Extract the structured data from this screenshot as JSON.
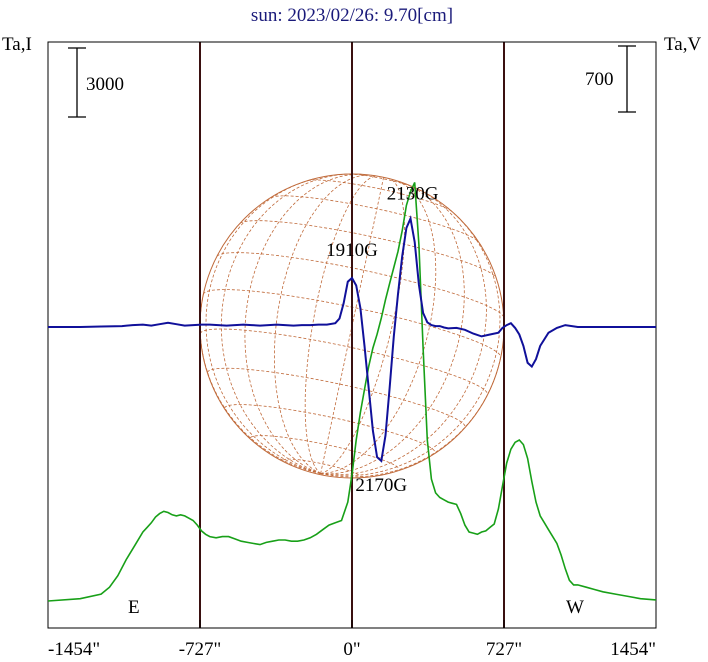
{
  "chart_data": {
    "type": "line",
    "title": "sun: 2023/02/26: 9.70[cm]",
    "left_axis_label": "Ta,I",
    "right_axis_label": "Ta,V",
    "xlim": [
      -1454,
      1454
    ],
    "x_tick_values": [
      -1454,
      -727,
      0,
      727,
      1454
    ],
    "x_tick_labels": [
      "-1454\"",
      "-727\"",
      "0\"",
      "727\"",
      "1454\""
    ],
    "limb_markers": [
      {
        "x": -727,
        "label": ""
      },
      {
        "x": 0,
        "label": ""
      },
      {
        "x": 727,
        "label": ""
      }
    ],
    "limb_lines_x": [
      -727,
      0,
      727
    ],
    "edge_labels": {
      "east": "E",
      "west": "W"
    },
    "scale_bars": {
      "intensity": {
        "label": "3000",
        "length": 3000
      },
      "polarization": {
        "label": "700",
        "length": 700
      }
    },
    "annotations": [
      {
        "text": "2130G",
        "x": 290,
        "y_V": 1120
      },
      {
        "text": "1910G",
        "x": 0,
        "y_V": 520
      },
      {
        "text": "2170G",
        "x": 140,
        "y_V": -1400
      }
    ],
    "series": [
      {
        "name": "Ta,I",
        "color": "#18a018",
        "axis": "left",
        "x": [
          -1454,
          -1300,
          -1200,
          -1160,
          -1120,
          -1080,
          -1040,
          -1000,
          -980,
          -960,
          -940,
          -920,
          -900,
          -880,
          -860,
          -840,
          -820,
          -800,
          -780,
          -760,
          -740,
          -720,
          -700,
          -680,
          -650,
          -620,
          -590,
          -560,
          -530,
          -500,
          -470,
          -440,
          -410,
          -380,
          -350,
          -320,
          -290,
          -260,
          -230,
          -200,
          -170,
          -140,
          -110,
          -80,
          -50,
          -20,
          0,
          20,
          40,
          60,
          80,
          100,
          120,
          140,
          160,
          180,
          200,
          220,
          240,
          260,
          280,
          300,
          320,
          340,
          360,
          380,
          400,
          420,
          440,
          460,
          480,
          500,
          520,
          540,
          560,
          580,
          600,
          620,
          640,
          660,
          680,
          700,
          720,
          740,
          760,
          780,
          800,
          820,
          840,
          860,
          880,
          900,
          920,
          940,
          960,
          980,
          1000,
          1020,
          1040,
          1060,
          1080,
          1120,
          1160,
          1200,
          1260,
          1320,
          1380,
          1454
        ],
        "y": [
          0,
          100,
          300,
          600,
          1100,
          1800,
          2400,
          3000,
          3200,
          3400,
          3650,
          3800,
          3900,
          3850,
          3750,
          3700,
          3750,
          3700,
          3600,
          3500,
          3300,
          3050,
          2900,
          2800,
          2750,
          2800,
          2800,
          2700,
          2600,
          2550,
          2500,
          2450,
          2550,
          2600,
          2650,
          2650,
          2600,
          2600,
          2650,
          2750,
          2900,
          3100,
          3300,
          3400,
          3500,
          4300,
          5500,
          7000,
          8200,
          9200,
          10200,
          11000,
          11600,
          12300,
          13100,
          13800,
          14500,
          15200,
          16100,
          17200,
          17800,
          18200,
          15500,
          11000,
          7000,
          5300,
          4700,
          4500,
          4400,
          4300,
          4250,
          4200,
          3800,
          3300,
          3000,
          2950,
          2900,
          3000,
          3050,
          3200,
          3350,
          4000,
          5000,
          6000,
          6600,
          6900,
          7000,
          6800,
          6200,
          5200,
          4300,
          3700,
          3400,
          3100,
          2800,
          2500,
          2000,
          1400,
          900,
          700,
          700,
          600,
          500,
          400,
          300,
          200,
          100,
          50
        ]
      },
      {
        "name": "Ta,V",
        "color": "#10109a",
        "axis": "right",
        "x": [
          -1454,
          -1300,
          -1200,
          -1100,
          -1050,
          -1000,
          -960,
          -920,
          -880,
          -840,
          -800,
          -760,
          -720,
          -680,
          -640,
          -600,
          -560,
          -520,
          -480,
          -440,
          -400,
          -360,
          -320,
          -280,
          -240,
          -200,
          -160,
          -120,
          -80,
          -60,
          -40,
          -20,
          0,
          20,
          40,
          60,
          80,
          100,
          120,
          140,
          160,
          180,
          200,
          220,
          240,
          260,
          280,
          300,
          320,
          340,
          360,
          380,
          400,
          420,
          440,
          460,
          500,
          540,
          580,
          620,
          660,
          700,
          720,
          740,
          760,
          780,
          800,
          820,
          840,
          860,
          880,
          900,
          940,
          980,
          1020,
          1080,
          1200,
          1300,
          1454
        ],
        "y": [
          0,
          0,
          5,
          10,
          20,
          25,
          15,
          30,
          45,
          30,
          15,
          20,
          25,
          25,
          20,
          15,
          20,
          25,
          20,
          15,
          20,
          25,
          20,
          15,
          20,
          20,
          25,
          25,
          40,
          90,
          250,
          480,
          520,
          440,
          200,
          -200,
          -650,
          -1100,
          -1380,
          -1420,
          -1150,
          -650,
          -100,
          350,
          750,
          1050,
          1150,
          900,
          450,
          150,
          50,
          20,
          10,
          10,
          -5,
          -15,
          -10,
          -30,
          -70,
          -100,
          -80,
          -60,
          -10,
          20,
          40,
          -10,
          -80,
          -200,
          -380,
          -420,
          -340,
          -200,
          -60,
          -10,
          20,
          0,
          0,
          0,
          0
        ]
      }
    ]
  }
}
